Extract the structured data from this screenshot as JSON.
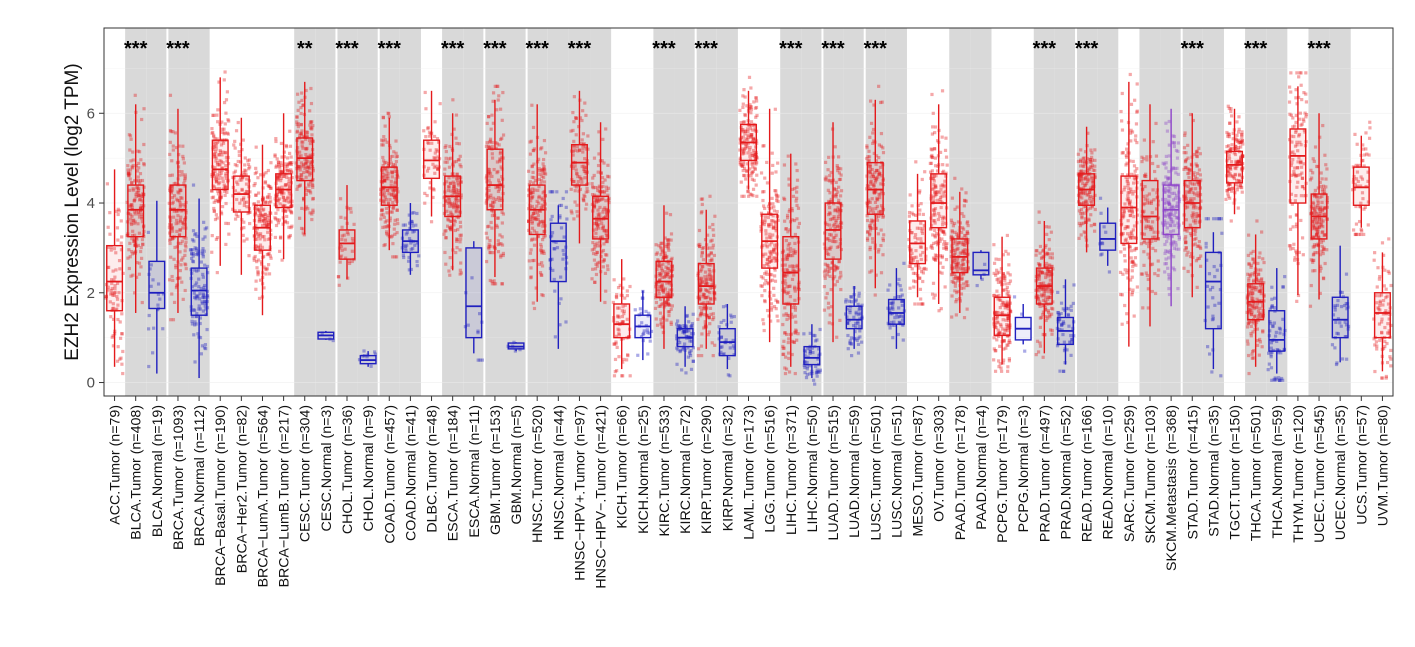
{
  "chart_data": {
    "type": "box",
    "ylabel": "EZH2 Expression Level (log2 TPM)",
    "xlabel": "",
    "ylim": [
      -0.3,
      7.9
    ],
    "yticks": [
      "0",
      "2",
      "4",
      "6"
    ],
    "colors": {
      "tumor": "#e41a1c",
      "normal": "#1f1fbf",
      "metastasis": "#8e44c9",
      "band": "#d9d9d9",
      "panel_bg": "#ffffff",
      "grid": "#ececec"
    },
    "groups": [
      {
        "label": "ACC.Tumor (n=79)",
        "kind": "tumor",
        "band": false,
        "sig": "",
        "q1": 1.6,
        "median": 2.25,
        "q3": 3.05,
        "wlo": 0.35,
        "whi": 4.75
      },
      {
        "label": "BLCA.Tumor (n=408)",
        "kind": "tumor",
        "band": true,
        "sig": "***",
        "q1": 3.25,
        "median": 3.85,
        "q3": 4.4,
        "wlo": 1.55,
        "whi": 6.2
      },
      {
        "label": "BLCA.Normal (n=19)",
        "kind": "normal",
        "band": true,
        "sig": "",
        "q1": 1.65,
        "median": 2.0,
        "q3": 2.7,
        "wlo": 0.2,
        "whi": 4.05
      },
      {
        "label": "BRCA.Tumor (n=1093)",
        "kind": "tumor",
        "band": true,
        "sig": "***",
        "q1": 3.25,
        "median": 3.85,
        "q3": 4.4,
        "wlo": 1.55,
        "whi": 6.1
      },
      {
        "label": "BRCA.Normal (n=112)",
        "kind": "normal",
        "band": true,
        "sig": "",
        "q1": 1.5,
        "median": 2.05,
        "q3": 2.55,
        "wlo": 0.1,
        "whi": 4.1
      },
      {
        "label": "BRCA−Basal.Tumor (n=190)",
        "kind": "tumor",
        "band": false,
        "sig": "",
        "q1": 4.3,
        "median": 4.75,
        "q3": 5.4,
        "wlo": 2.6,
        "whi": 6.8
      },
      {
        "label": "BRCA−Her2.Tumor (n=82)",
        "kind": "tumor",
        "band": false,
        "sig": "",
        "q1": 3.8,
        "median": 4.2,
        "q3": 4.6,
        "wlo": 2.4,
        "whi": 5.9
      },
      {
        "label": "BRCA−LumA.Tumor (n=564)",
        "kind": "tumor",
        "band": false,
        "sig": "",
        "q1": 2.95,
        "median": 3.45,
        "q3": 3.95,
        "wlo": 1.5,
        "whi": 5.3
      },
      {
        "label": "BRCA−LumB.Tumor (n=217)",
        "kind": "tumor",
        "band": false,
        "sig": "",
        "q1": 3.9,
        "median": 4.3,
        "q3": 4.65,
        "wlo": 2.75,
        "whi": 6.0
      },
      {
        "label": "CESC.Tumor (n=304)",
        "kind": "tumor",
        "band": true,
        "sig": "**",
        "q1": 4.5,
        "median": 5.0,
        "q3": 5.45,
        "wlo": 3.3,
        "whi": 6.7
      },
      {
        "label": "CESC.Normal (n=3)",
        "kind": "normal",
        "band": true,
        "sig": "",
        "q1": 0.97,
        "median": 1.05,
        "q3": 1.12,
        "wlo": 0.95,
        "whi": 1.15
      },
      {
        "label": "CHOL.Tumor (n=36)",
        "kind": "tumor",
        "band": true,
        "sig": "***",
        "q1": 2.75,
        "median": 3.1,
        "q3": 3.4,
        "wlo": 2.3,
        "whi": 4.4
      },
      {
        "label": "CHOL.Normal (n=9)",
        "kind": "normal",
        "band": true,
        "sig": "",
        "q1": 0.42,
        "median": 0.5,
        "q3": 0.6,
        "wlo": 0.35,
        "whi": 0.7
      },
      {
        "label": "COAD.Tumor (n=457)",
        "kind": "tumor",
        "band": true,
        "sig": "***",
        "q1": 3.95,
        "median": 4.35,
        "q3": 4.8,
        "wlo": 2.95,
        "whi": 5.9
      },
      {
        "label": "COAD.Normal (n=41)",
        "kind": "normal",
        "band": true,
        "sig": "",
        "q1": 2.9,
        "median": 3.15,
        "q3": 3.4,
        "wlo": 2.4,
        "whi": 4.0
      },
      {
        "label": "DLBC.Tumor (n=48)",
        "kind": "tumor",
        "band": false,
        "sig": "",
        "q1": 4.55,
        "median": 4.95,
        "q3": 5.4,
        "wlo": 3.7,
        "whi": 6.5
      },
      {
        "label": "ESCA.Tumor (n=184)",
        "kind": "tumor",
        "band": true,
        "sig": "***",
        "q1": 3.7,
        "median": 4.15,
        "q3": 4.6,
        "wlo": 2.5,
        "whi": 6.0
      },
      {
        "label": "ESCA.Normal (n=11)",
        "kind": "normal",
        "band": true,
        "sig": "",
        "q1": 1.0,
        "median": 1.7,
        "q3": 3.0,
        "wlo": 0.65,
        "whi": 3.15
      },
      {
        "label": "GBM.Tumor (n=153)",
        "kind": "tumor",
        "band": true,
        "sig": "***",
        "q1": 3.85,
        "median": 4.4,
        "q3": 5.2,
        "wlo": 2.35,
        "whi": 6.3
      },
      {
        "label": "GBM.Normal (n=5)",
        "kind": "normal",
        "band": true,
        "sig": "",
        "q1": 0.75,
        "median": 0.8,
        "q3": 0.88,
        "wlo": 0.7,
        "whi": 0.9
      },
      {
        "label": "HNSC.Tumor (n=520)",
        "kind": "tumor",
        "band": true,
        "sig": "***",
        "q1": 3.3,
        "median": 3.85,
        "q3": 4.4,
        "wlo": 1.8,
        "whi": 6.2
      },
      {
        "label": "HNSC.Normal (n=44)",
        "kind": "normal",
        "band": true,
        "sig": "",
        "q1": 2.25,
        "median": 3.15,
        "q3": 3.55,
        "wlo": 0.75,
        "whi": 3.95
      },
      {
        "label": "HNSC−HPV+.Tumor (n=97)",
        "kind": "tumor",
        "band": true,
        "sig": "***",
        "q1": 4.4,
        "median": 4.9,
        "q3": 5.3,
        "wlo": 3.1,
        "whi": 6.5
      },
      {
        "label": "HNSC−HPV−.Tumor (n=421)",
        "kind": "tumor",
        "band": true,
        "sig": "",
        "q1": 3.2,
        "median": 3.65,
        "q3": 4.15,
        "wlo": 1.8,
        "whi": 5.8
      },
      {
        "label": "KICH.Tumor (n=66)",
        "kind": "tumor",
        "band": false,
        "sig": "",
        "q1": 1.0,
        "median": 1.3,
        "q3": 1.75,
        "wlo": 0.3,
        "whi": 2.75
      },
      {
        "label": "KICH.Normal (n=25)",
        "kind": "normal",
        "band": false,
        "sig": "",
        "q1": 1.0,
        "median": 1.25,
        "q3": 1.5,
        "wlo": 0.5,
        "whi": 2.05
      },
      {
        "label": "KIRC.Tumor (n=533)",
        "kind": "tumor",
        "band": true,
        "sig": "***",
        "q1": 1.9,
        "median": 2.25,
        "q3": 2.7,
        "wlo": 0.75,
        "whi": 3.95
      },
      {
        "label": "KIRC.Normal (n=72)",
        "kind": "normal",
        "band": true,
        "sig": "",
        "q1": 0.8,
        "median": 1.0,
        "q3": 1.2,
        "wlo": 0.35,
        "whi": 1.7
      },
      {
        "label": "KIRP.Tumor (n=290)",
        "kind": "tumor",
        "band": true,
        "sig": "***",
        "q1": 1.75,
        "median": 2.15,
        "q3": 2.65,
        "wlo": 0.75,
        "whi": 3.85
      },
      {
        "label": "KIRP.Normal (n=32)",
        "kind": "normal",
        "band": true,
        "sig": "",
        "q1": 0.6,
        "median": 0.9,
        "q3": 1.2,
        "wlo": 0.3,
        "whi": 1.75
      },
      {
        "label": "LAML.Tumor (n=173)",
        "kind": "tumor",
        "band": false,
        "sig": "",
        "q1": 4.95,
        "median": 5.35,
        "q3": 5.75,
        "wlo": 4.3,
        "whi": 6.5
      },
      {
        "label": "LGG.Tumor (n=516)",
        "kind": "tumor",
        "band": false,
        "sig": "",
        "q1": 2.55,
        "median": 3.15,
        "q3": 3.75,
        "wlo": 0.9,
        "whi": 6.1
      },
      {
        "label": "LIHC.Tumor (n=371)",
        "kind": "tumor",
        "band": true,
        "sig": "***",
        "q1": 1.75,
        "median": 2.45,
        "q3": 3.25,
        "wlo": 0.35,
        "whi": 5.1
      },
      {
        "label": "LIHC.Normal (n=50)",
        "kind": "normal",
        "band": true,
        "sig": "",
        "q1": 0.4,
        "median": 0.55,
        "q3": 0.8,
        "wlo": 0.1,
        "whi": 1.3
      },
      {
        "label": "LUAD.Tumor (n=515)",
        "kind": "tumor",
        "band": true,
        "sig": "***",
        "q1": 2.75,
        "median": 3.4,
        "q3": 4.0,
        "wlo": 0.9,
        "whi": 5.8
      },
      {
        "label": "LUAD.Normal (n=59)",
        "kind": "normal",
        "band": true,
        "sig": "",
        "q1": 1.2,
        "median": 1.4,
        "q3": 1.7,
        "wlo": 0.75,
        "whi": 2.15
      },
      {
        "label": "LUSC.Tumor (n=501)",
        "kind": "tumor",
        "band": true,
        "sig": "***",
        "q1": 3.75,
        "median": 4.3,
        "q3": 4.9,
        "wlo": 2.1,
        "whi": 6.3
      },
      {
        "label": "LUSC.Normal (n=51)",
        "kind": "normal",
        "band": true,
        "sig": "",
        "q1": 1.3,
        "median": 1.55,
        "q3": 1.85,
        "wlo": 0.75,
        "whi": 2.55
      },
      {
        "label": "MESO.Tumor (n=87)",
        "kind": "tumor",
        "band": false,
        "sig": "",
        "q1": 2.65,
        "median": 3.1,
        "q3": 3.6,
        "wlo": 1.9,
        "whi": 4.65
      },
      {
        "label": "OV.Tumor (n=303)",
        "kind": "tumor",
        "band": false,
        "sig": "",
        "q1": 3.45,
        "median": 4.0,
        "q3": 4.65,
        "wlo": 1.75,
        "whi": 6.2
      },
      {
        "label": "PAAD.Tumor (n=178)",
        "kind": "tumor",
        "band": true,
        "sig": "",
        "q1": 2.45,
        "median": 2.8,
        "q3": 3.2,
        "wlo": 1.55,
        "whi": 4.25
      },
      {
        "label": "PAAD.Normal (n=4)",
        "kind": "normal",
        "band": true,
        "sig": "",
        "q1": 2.4,
        "median": 2.5,
        "q3": 2.9,
        "wlo": 2.3,
        "whi": 2.95
      },
      {
        "label": "PCPG.Tumor (n=179)",
        "kind": "tumor",
        "band": false,
        "sig": "",
        "q1": 1.05,
        "median": 1.5,
        "q3": 1.9,
        "wlo": 0.4,
        "whi": 3.25
      },
      {
        "label": "PCPG.Normal (n=3)",
        "kind": "normal",
        "band": false,
        "sig": "",
        "q1": 0.95,
        "median": 1.2,
        "q3": 1.45,
        "wlo": 0.85,
        "whi": 1.75
      },
      {
        "label": "PRAD.Tumor (n=497)",
        "kind": "tumor",
        "band": true,
        "sig": "***",
        "q1": 1.75,
        "median": 2.15,
        "q3": 2.55,
        "wlo": 0.65,
        "whi": 3.6
      },
      {
        "label": "PRAD.Normal (n=52)",
        "kind": "normal",
        "band": true,
        "sig": "",
        "q1": 0.85,
        "median": 1.15,
        "q3": 1.45,
        "wlo": 0.4,
        "whi": 2.3
      },
      {
        "label": "READ.Tumor (n=166)",
        "kind": "tumor",
        "band": true,
        "sig": "***",
        "q1": 3.95,
        "median": 4.3,
        "q3": 4.65,
        "wlo": 2.9,
        "whi": 5.7
      },
      {
        "label": "READ.Normal (n=10)",
        "kind": "normal",
        "band": true,
        "sig": "",
        "q1": 2.95,
        "median": 3.2,
        "q3": 3.55,
        "wlo": 2.6,
        "whi": 3.9
      },
      {
        "label": "SARC.Tumor (n=259)",
        "kind": "tumor",
        "band": false,
        "sig": "",
        "q1": 3.1,
        "median": 3.9,
        "q3": 4.6,
        "wlo": 0.8,
        "whi": 6.7
      },
      {
        "label": "SKCM.Tumor (n=103)",
        "kind": "tumor",
        "band": true,
        "sig": "",
        "q1": 3.2,
        "median": 3.7,
        "q3": 4.5,
        "wlo": 1.25,
        "whi": 6.2
      },
      {
        "label": "SKCM.Metastasis (n=368)",
        "kind": "metastasis",
        "band": true,
        "sig": "",
        "q1": 3.3,
        "median": 3.85,
        "q3": 4.4,
        "wlo": 1.7,
        "whi": 6.1
      },
      {
        "label": "STAD.Tumor (n=415)",
        "kind": "tumor",
        "band": true,
        "sig": "***",
        "q1": 3.45,
        "median": 4.0,
        "q3": 4.5,
        "wlo": 1.9,
        "whi": 6.0
      },
      {
        "label": "STAD.Normal (n=35)",
        "kind": "normal",
        "band": true,
        "sig": "",
        "q1": 1.2,
        "median": 2.25,
        "q3": 2.9,
        "wlo": 0.3,
        "whi": 3.35
      },
      {
        "label": "TGCT.Tumor (n=150)",
        "kind": "tumor",
        "band": false,
        "sig": "",
        "q1": 4.45,
        "median": 4.85,
        "q3": 5.15,
        "wlo": 3.75,
        "whi": 6.1
      },
      {
        "label": "THCA.Tumor (n=501)",
        "kind": "tumor",
        "band": true,
        "sig": "***",
        "q1": 1.4,
        "median": 1.8,
        "q3": 2.2,
        "wlo": 0.35,
        "whi": 3.3
      },
      {
        "label": "THCA.Normal (n=59)",
        "kind": "normal",
        "band": true,
        "sig": "",
        "q1": 0.7,
        "median": 0.95,
        "q3": 1.6,
        "wlo": 0.2,
        "whi": 2.55
      },
      {
        "label": "THYM.Tumor (n=120)",
        "kind": "tumor",
        "band": false,
        "sig": "",
        "q1": 4.0,
        "median": 5.05,
        "q3": 5.65,
        "wlo": 1.95,
        "whi": 6.6
      },
      {
        "label": "UCEC.Tumor (n=545)",
        "kind": "tumor",
        "band": true,
        "sig": "***",
        "q1": 3.2,
        "median": 3.7,
        "q3": 4.2,
        "wlo": 1.85,
        "whi": 6.0
      },
      {
        "label": "UCEC.Normal (n=35)",
        "kind": "normal",
        "band": true,
        "sig": "",
        "q1": 1.0,
        "median": 1.4,
        "q3": 1.9,
        "wlo": 0.45,
        "whi": 3.05
      },
      {
        "label": "UCS.Tumor (n=57)",
        "kind": "tumor",
        "band": false,
        "sig": "",
        "q1": 3.95,
        "median": 4.35,
        "q3": 4.8,
        "wlo": 3.45,
        "whi": 5.5
      },
      {
        "label": "UVM.Tumor (n=80)",
        "kind": "tumor",
        "band": false,
        "sig": "",
        "q1": 1.0,
        "median": 1.55,
        "q3": 2.0,
        "wlo": 0.25,
        "whi": 2.9
      }
    ]
  }
}
